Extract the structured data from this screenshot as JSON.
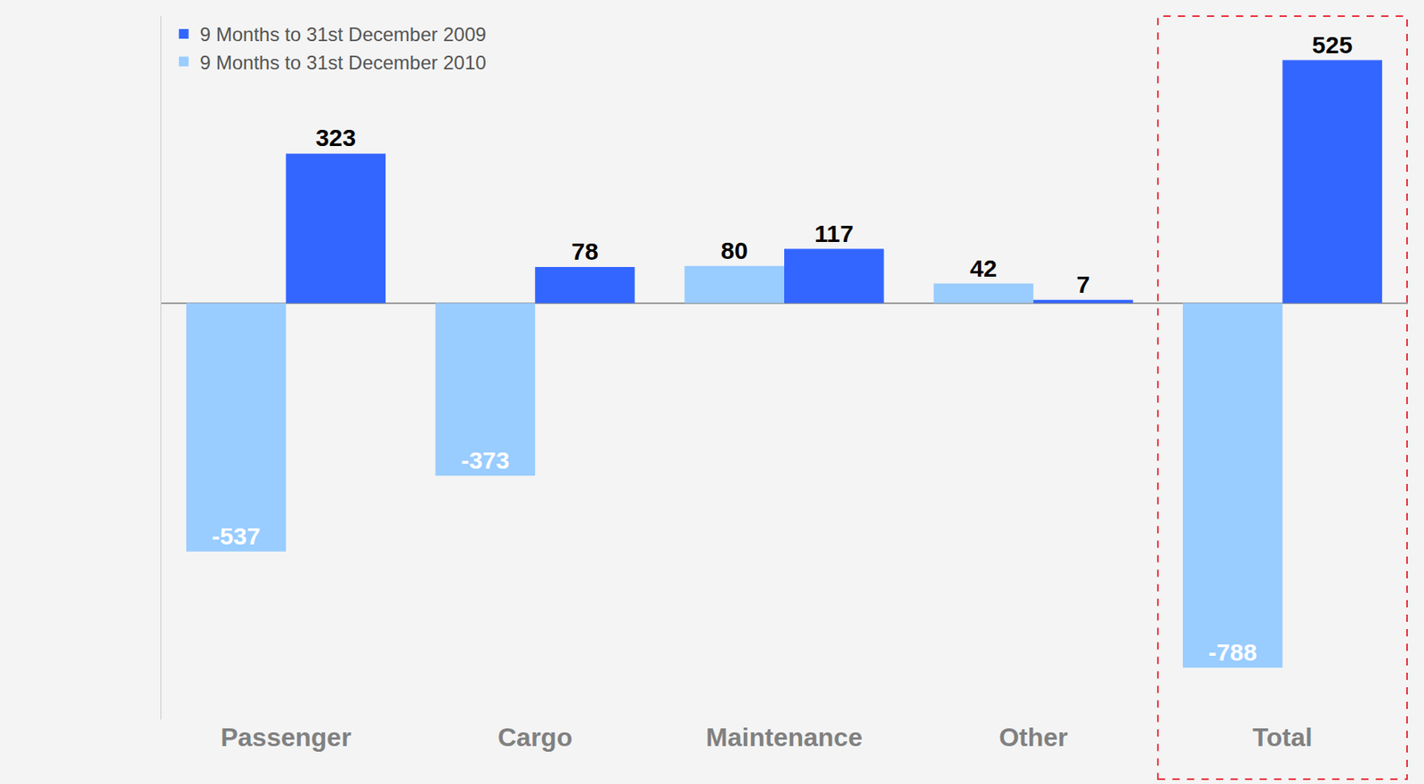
{
  "chart_data": {
    "type": "bar",
    "categories": [
      "Passenger",
      "Cargo",
      "Maintenance",
      "Other",
      "Total"
    ],
    "series": [
      {
        "name": "9 Months to 31st December 2009",
        "color": "#3366ff",
        "values": [
          323,
          78,
          117,
          7,
          525
        ]
      },
      {
        "name": "9 Months to 31st December 2010",
        "color": "#99ccff",
        "values": [
          -537,
          -373,
          80,
          42,
          -788
        ]
      }
    ],
    "ylim": [
      -900,
      620
    ],
    "yticks": [
      0
    ],
    "data_labels": true,
    "tick_labels": "x",
    "grid": false,
    "legend": "upper left"
  }
}
